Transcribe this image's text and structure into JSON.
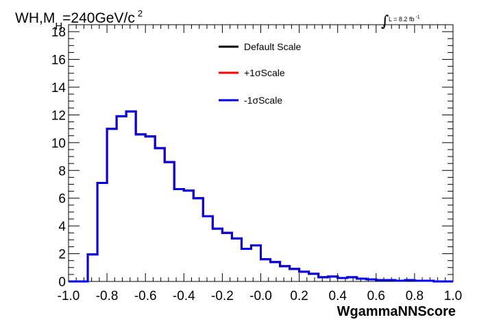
{
  "header": {
    "title_main": "WH,M",
    "title_sub": "H",
    "title_rest": "=240GeV/c",
    "title_sup": "2",
    "lumi_prefix": "L = 8.2 fb",
    "lumi_sup": "-1"
  },
  "chart_data": {
    "type": "histogram",
    "xlabel": "WgammaNNScore",
    "ylabel": "",
    "xlim": [
      -1.0,
      1.0
    ],
    "ylim": [
      0,
      18.5
    ],
    "x_ticks": [
      "-1.0",
      "-0.8",
      "-0.6",
      "-0.4",
      "-0.2",
      "-0.0",
      "0.2",
      "0.4",
      "0.6",
      "0.8",
      "1.0"
    ],
    "x_tick_values": [
      -1.0,
      -0.8,
      -0.6,
      -0.4,
      -0.2,
      0.0,
      0.2,
      0.4,
      0.6,
      0.8,
      1.0
    ],
    "y_ticks": [
      "0",
      "2",
      "4",
      "6",
      "8",
      "10",
      "12",
      "14",
      "16",
      "18"
    ],
    "y_tick_values": [
      0,
      2,
      4,
      6,
      8,
      10,
      12,
      14,
      16,
      18
    ],
    "bin_edges": [
      -1.0,
      -0.95,
      -0.9,
      -0.85,
      -0.8,
      -0.75,
      -0.7,
      -0.65,
      -0.6,
      -0.55,
      -0.5,
      -0.45,
      -0.4,
      -0.35,
      -0.3,
      -0.25,
      -0.2,
      -0.15,
      -0.1,
      -0.05,
      0.0,
      0.05,
      0.1,
      0.15,
      0.2,
      0.25,
      0.3,
      0.35,
      0.4,
      0.45,
      0.5,
      0.55,
      0.6,
      0.65,
      0.7,
      0.75,
      0.8,
      0.85,
      0.9,
      0.95,
      1.0
    ],
    "legend_position": "top-center",
    "series": [
      {
        "name": "Default Scale",
        "color": "#000000",
        "values": [
          0,
          0,
          1.95,
          7.1,
          11.0,
          11.9,
          12.25,
          10.6,
          10.45,
          9.6,
          8.6,
          6.65,
          6.55,
          6.0,
          4.7,
          3.8,
          3.5,
          3.1,
          2.35,
          2.6,
          1.6,
          1.4,
          1.1,
          0.9,
          0.7,
          0.55,
          0.3,
          0.35,
          0.25,
          0.3,
          0.2,
          0.15,
          0.1,
          0.1,
          0.05,
          0.1,
          0.05,
          0.05,
          0,
          0
        ]
      },
      {
        "name": "+1σScale",
        "color": "#ff0000",
        "values": [
          0,
          0,
          1.95,
          7.1,
          11.0,
          11.9,
          12.25,
          10.6,
          10.45,
          9.6,
          8.6,
          6.65,
          6.55,
          6.0,
          4.7,
          3.8,
          3.5,
          3.1,
          2.35,
          2.6,
          1.6,
          1.4,
          1.1,
          0.9,
          0.7,
          0.55,
          0.3,
          0.35,
          0.25,
          0.3,
          0.2,
          0.15,
          0.1,
          0.1,
          0.05,
          0.1,
          0.05,
          0.05,
          0,
          0
        ]
      },
      {
        "name": "-1σScale",
        "color": "#0000ee",
        "values": [
          0,
          0,
          1.95,
          7.1,
          11.0,
          11.9,
          12.25,
          10.6,
          10.45,
          9.6,
          8.6,
          6.65,
          6.55,
          6.0,
          4.7,
          3.8,
          3.5,
          3.1,
          2.35,
          2.6,
          1.6,
          1.4,
          1.1,
          0.9,
          0.7,
          0.55,
          0.3,
          0.35,
          0.25,
          0.3,
          0.2,
          0.15,
          0.1,
          0.1,
          0.05,
          0.1,
          0.05,
          0.05,
          0,
          0
        ]
      }
    ]
  }
}
